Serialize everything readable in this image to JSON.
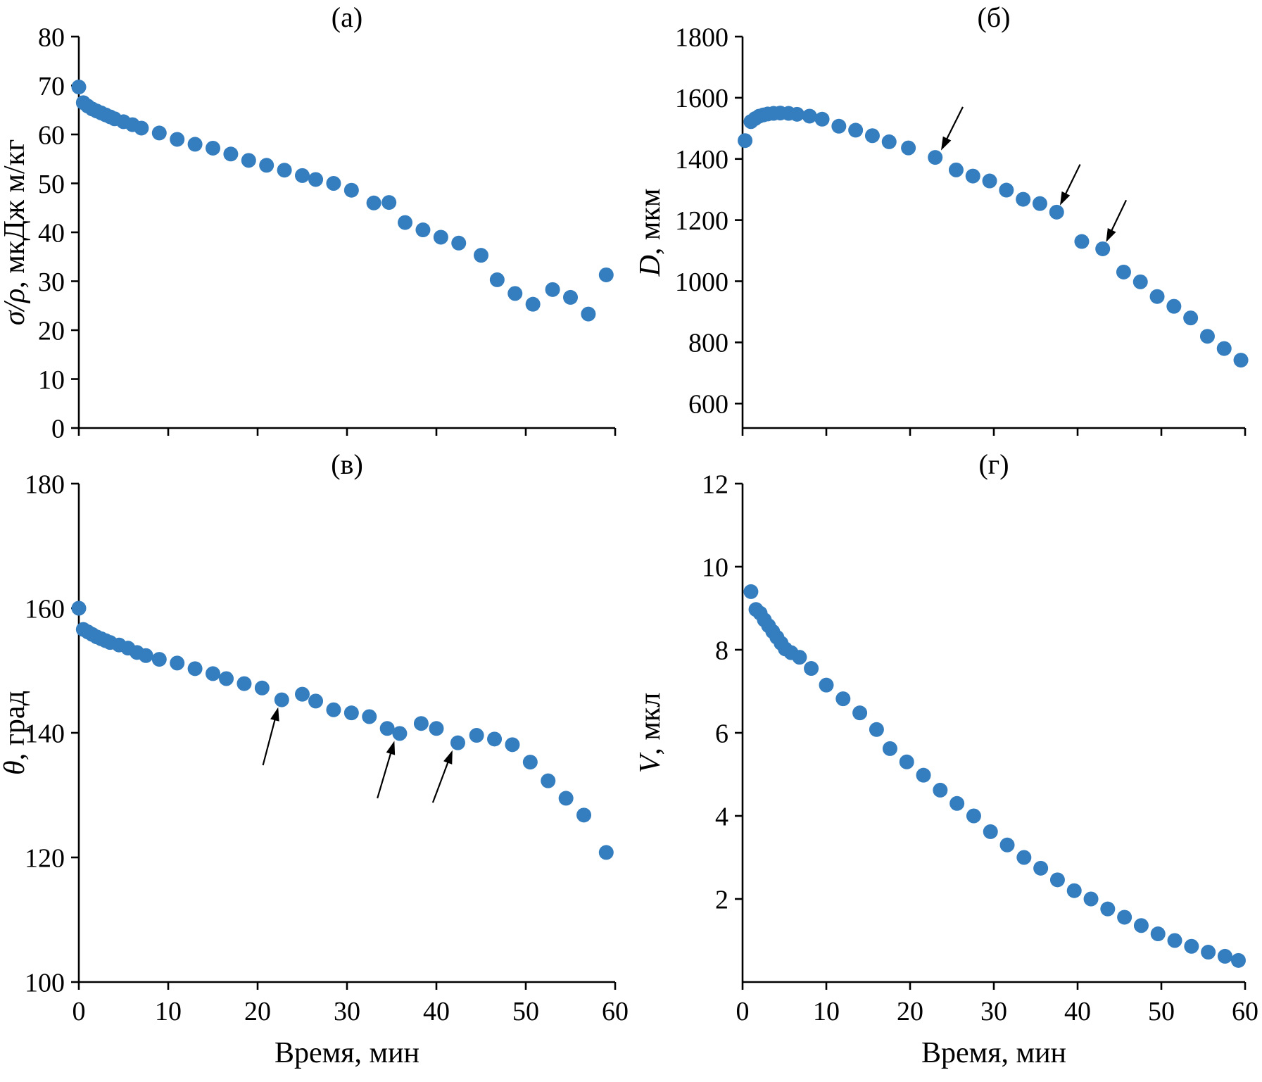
{
  "figure": {
    "background": "#ffffff",
    "marker_color": "#347dbe",
    "axis_color": "#000000"
  },
  "chart_data": [
    {
      "id": "a",
      "type": "scatter",
      "title": "(а)",
      "ylabel_parts": [
        {
          "text": "σ/ρ",
          "italic": true
        },
        {
          "text": ", мкДж м/кг",
          "italic": false
        }
      ],
      "xlabel": "",
      "xlim": [
        0,
        60
      ],
      "ylim": [
        0,
        80
      ],
      "xticks": [
        0,
        10,
        20,
        30,
        40,
        50,
        60
      ],
      "yticks": [
        0,
        10,
        20,
        30,
        40,
        50,
        60,
        70,
        80
      ],
      "show_xtick_labels": false,
      "points": [
        [
          0,
          69.7
        ],
        [
          0.5,
          66.5
        ],
        [
          1,
          65.8
        ],
        [
          1.5,
          65.2
        ],
        [
          2,
          64.8
        ],
        [
          2.5,
          64.4
        ],
        [
          3,
          64.0
        ],
        [
          3.5,
          63.6
        ],
        [
          4,
          63.2
        ],
        [
          5,
          62.6
        ],
        [
          6,
          62.0
        ],
        [
          7,
          61.3
        ],
        [
          9,
          60.3
        ],
        [
          11,
          59.0
        ],
        [
          13,
          58.0
        ],
        [
          15,
          57.2
        ],
        [
          17,
          56.0
        ],
        [
          19,
          54.7
        ],
        [
          21,
          53.7
        ],
        [
          23,
          52.7
        ],
        [
          25,
          51.6
        ],
        [
          26.5,
          50.8
        ],
        [
          28.5,
          50.0
        ],
        [
          30.5,
          48.6
        ],
        [
          33,
          46.0
        ],
        [
          34.7,
          46.1
        ],
        [
          36.5,
          42.0
        ],
        [
          38.5,
          40.5
        ],
        [
          40.5,
          39.0
        ],
        [
          42.5,
          37.8
        ],
        [
          45,
          35.3
        ],
        [
          46.8,
          30.3
        ],
        [
          48.8,
          27.5
        ],
        [
          50.8,
          25.3
        ],
        [
          53,
          28.3
        ],
        [
          55,
          26.7
        ],
        [
          57,
          23.3
        ],
        [
          59,
          31.3
        ]
      ],
      "arrows": []
    },
    {
      "id": "b",
      "type": "scatter",
      "title": "(б)",
      "ylabel_parts": [
        {
          "text": "D",
          "italic": true
        },
        {
          "text": ", мкм",
          "italic": false
        }
      ],
      "xlabel": "",
      "xlim": [
        0,
        60
      ],
      "ylim": [
        520,
        1800
      ],
      "xticks": [
        0,
        10,
        20,
        30,
        40,
        50,
        60
      ],
      "yticks": [
        600,
        800,
        1000,
        1200,
        1400,
        1600,
        1800
      ],
      "show_xtick_labels": false,
      "points": [
        [
          0.3,
          1460
        ],
        [
          1,
          1522
        ],
        [
          1.5,
          1532
        ],
        [
          2,
          1540
        ],
        [
          2.5,
          1544
        ],
        [
          3,
          1547
        ],
        [
          3.7,
          1549
        ],
        [
          4.5,
          1550
        ],
        [
          5.5,
          1549
        ],
        [
          6.5,
          1546
        ],
        [
          8,
          1540
        ],
        [
          9.5,
          1530
        ],
        [
          11.5,
          1507
        ],
        [
          13.5,
          1494
        ],
        [
          15.5,
          1476
        ],
        [
          17.5,
          1456
        ],
        [
          19.8,
          1436
        ],
        [
          23,
          1405
        ],
        [
          25.5,
          1364
        ],
        [
          27.5,
          1344
        ],
        [
          29.5,
          1328
        ],
        [
          31.5,
          1298
        ],
        [
          33.5,
          1268
        ],
        [
          35.5,
          1254
        ],
        [
          37.5,
          1226
        ],
        [
          40.5,
          1130
        ],
        [
          43,
          1106
        ],
        [
          45.5,
          1030
        ],
        [
          47.5,
          998
        ],
        [
          49.5,
          950
        ],
        [
          51.5,
          918
        ],
        [
          53.5,
          880
        ],
        [
          55.5,
          820
        ],
        [
          57.5,
          780
        ],
        [
          59.5,
          742
        ]
      ],
      "arrows": [
        {
          "from": [
            26.3,
            1570
          ],
          "to": [
            23.7,
            1428
          ]
        },
        {
          "from": [
            40.3,
            1382
          ],
          "to": [
            37.9,
            1248
          ]
        },
        {
          "from": [
            45.8,
            1265
          ],
          "to": [
            43.4,
            1128
          ]
        }
      ]
    },
    {
      "id": "c",
      "type": "scatter",
      "title": "(в)",
      "ylabel_parts": [
        {
          "text": "θ",
          "italic": true
        },
        {
          "text": ", град",
          "italic": false
        }
      ],
      "xlabel": "Время, мин",
      "xlim": [
        0,
        60
      ],
      "ylim": [
        100,
        180
      ],
      "xticks": [
        0,
        10,
        20,
        30,
        40,
        50,
        60
      ],
      "yticks": [
        100,
        120,
        140,
        160,
        180
      ],
      "show_xtick_labels": true,
      "points": [
        [
          0,
          160
        ],
        [
          0.5,
          156.6
        ],
        [
          1,
          156.2
        ],
        [
          1.5,
          155.8
        ],
        [
          2,
          155.4
        ],
        [
          2.5,
          155.1
        ],
        [
          3,
          154.8
        ],
        [
          3.5,
          154.5
        ],
        [
          4.5,
          154.1
        ],
        [
          5.5,
          153.6
        ],
        [
          6.5,
          152.9
        ],
        [
          7.5,
          152.4
        ],
        [
          9,
          151.8
        ],
        [
          11,
          151.2
        ],
        [
          13,
          150.3
        ],
        [
          15,
          149.5
        ],
        [
          16.5,
          148.7
        ],
        [
          18.5,
          147.9
        ],
        [
          20.5,
          147.2
        ],
        [
          22.7,
          145.3
        ],
        [
          25,
          146.2
        ],
        [
          26.5,
          145.1
        ],
        [
          28.5,
          143.7
        ],
        [
          30.5,
          143.2
        ],
        [
          32.5,
          142.6
        ],
        [
          34.5,
          140.7
        ],
        [
          35.9,
          139.9
        ],
        [
          38.3,
          141.5
        ],
        [
          40,
          140.7
        ],
        [
          42.4,
          138.4
        ],
        [
          44.5,
          139.6
        ],
        [
          46.5,
          139.0
        ],
        [
          48.5,
          138.1
        ],
        [
          50.5,
          135.3
        ],
        [
          52.5,
          132.3
        ],
        [
          54.5,
          129.5
        ],
        [
          56.5,
          126.8
        ],
        [
          59,
          120.8
        ]
      ],
      "arrows": [
        {
          "from": [
            20.6,
            134.8
          ],
          "to": [
            22.3,
            144.1
          ]
        },
        {
          "from": [
            33.4,
            129.5
          ],
          "to": [
            35.3,
            138.7
          ]
        },
        {
          "from": [
            39.6,
            128.8
          ],
          "to": [
            41.8,
            137.2
          ]
        }
      ]
    },
    {
      "id": "d",
      "type": "scatter",
      "title": "(г)",
      "ylabel_parts": [
        {
          "text": "V",
          "italic": true
        },
        {
          "text": ", мкл",
          "italic": false
        }
      ],
      "xlabel": "Время, мин",
      "xlim": [
        0,
        60
      ],
      "ylim": [
        0,
        12
      ],
      "xticks": [
        0,
        10,
        20,
        30,
        40,
        50,
        60
      ],
      "yticks": [
        2,
        4,
        6,
        8,
        10,
        12
      ],
      "show_xtick_labels": true,
      "points": [
        [
          1,
          9.4
        ],
        [
          1.6,
          8.97
        ],
        [
          2.1,
          8.88
        ],
        [
          2.6,
          8.72
        ],
        [
          3.1,
          8.58
        ],
        [
          3.6,
          8.44
        ],
        [
          4.1,
          8.3
        ],
        [
          4.6,
          8.16
        ],
        [
          5.1,
          8.02
        ],
        [
          5.8,
          7.93
        ],
        [
          6.8,
          7.82
        ],
        [
          8.2,
          7.55
        ],
        [
          10,
          7.15
        ],
        [
          12,
          6.82
        ],
        [
          14,
          6.48
        ],
        [
          16,
          6.08
        ],
        [
          17.6,
          5.62
        ],
        [
          19.6,
          5.3
        ],
        [
          21.6,
          4.98
        ],
        [
          23.6,
          4.62
        ],
        [
          25.6,
          4.3
        ],
        [
          27.6,
          4.0
        ],
        [
          29.6,
          3.62
        ],
        [
          31.6,
          3.3
        ],
        [
          33.6,
          3.0
        ],
        [
          35.6,
          2.74
        ],
        [
          37.6,
          2.46
        ],
        [
          39.6,
          2.2
        ],
        [
          41.6,
          2.0
        ],
        [
          43.6,
          1.76
        ],
        [
          45.6,
          1.56
        ],
        [
          47.6,
          1.36
        ],
        [
          49.6,
          1.16
        ],
        [
          51.6,
          1.0
        ],
        [
          53.6,
          0.86
        ],
        [
          55.6,
          0.72
        ],
        [
          57.6,
          0.62
        ],
        [
          59.2,
          0.52
        ]
      ],
      "arrows": []
    }
  ]
}
